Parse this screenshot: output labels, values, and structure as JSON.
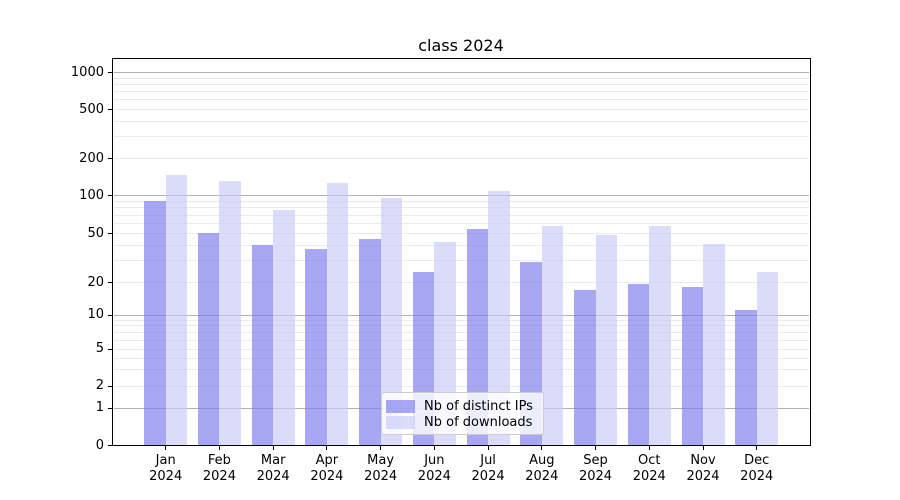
{
  "chart_data": {
    "type": "bar",
    "title": "class 2024",
    "x_year": "2024",
    "categories": [
      "Jan",
      "Feb",
      "Mar",
      "Apr",
      "May",
      "Jun",
      "Jul",
      "Aug",
      "Sep",
      "Oct",
      "Nov",
      "Dec"
    ],
    "series": [
      {
        "name": "Nb of distinct IPs",
        "color": "rgba(124,124,238,0.67)",
        "values": [
          90,
          50,
          40,
          37,
          45,
          24,
          54,
          29,
          17,
          19,
          18,
          11
        ]
      },
      {
        "name": "Nb of downloads",
        "color": "rgba(201,201,247,0.67)",
        "values": [
          145,
          130,
          76,
          125,
          95,
          42,
          108,
          57,
          48,
          57,
          41,
          24
        ]
      }
    ],
    "yscale": "symlog",
    "ylim": [
      0,
      1270
    ],
    "yticks": [
      1000,
      500,
      200,
      100,
      50,
      20,
      10,
      5,
      2,
      1,
      0
    ],
    "grid": {
      "major_values": [
        1,
        10,
        100,
        1000
      ],
      "minor_multiples": [
        2,
        3,
        4,
        5,
        6,
        7,
        8,
        9
      ],
      "minor_decades": [
        1,
        10,
        100
      ]
    },
    "legend_position": "lower center"
  },
  "colors": {
    "grid_major": "#b0b0b0",
    "grid_minor": "#eaeaea",
    "spine": "#000000",
    "bar_ips": "rgba(124,124,238,0.67)",
    "bar_downloads": "rgba(201,201,247,0.67)"
  }
}
